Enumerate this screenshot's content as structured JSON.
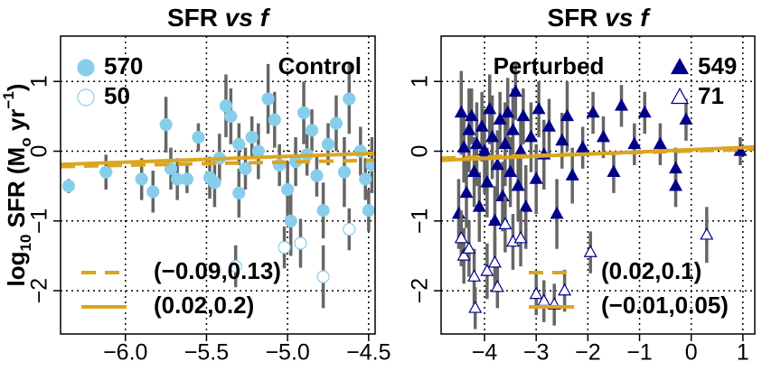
{
  "chart_data": [
    {
      "type": "scatter",
      "title_parts": [
        "SFR",
        "vs f"
      ],
      "ylabel_parts": [
        "log",
        "10",
        " SFR (M",
        "o",
        " yr",
        "−1",
        ")"
      ],
      "annotation": "Control",
      "xlim": [
        -6.4,
        -4.46
      ],
      "ylim": [
        -2.62,
        1.65
      ],
      "grid": true,
      "xticks": [
        {
          "value": -6.0,
          "label": "−6.0"
        },
        {
          "value": -5.5,
          "label": "−5.5"
        },
        {
          "value": -5.0,
          "label": "−5.0"
        },
        {
          "value": -4.5,
          "label": "−4.5"
        }
      ],
      "yticks": [
        1,
        0,
        {
          "value": -1,
          "label": "−1"
        },
        {
          "value": -2,
          "label": "−2"
        }
      ],
      "series": [
        {
          "name": "570",
          "marker": "circle",
          "filled": true,
          "color": "#87ceeb",
          "x": [
            -6.35,
            -6.12,
            -5.9,
            -5.83,
            -5.75,
            -5.72,
            -5.68,
            -5.62,
            -5.55,
            -5.48,
            -5.45,
            -5.42,
            -5.38,
            -5.35,
            -5.3,
            -5.3,
            -5.26,
            -5.22,
            -5.18,
            -5.12,
            -5.08,
            -5.05,
            -5.0,
            -4.98,
            -4.95,
            -4.9,
            -4.88,
            -4.85,
            -4.82,
            -4.78,
            -4.75,
            -4.7,
            -4.65,
            -4.62,
            -4.55,
            -4.52,
            -4.5,
            -4.48
          ],
          "y": [
            -0.5,
            -0.3,
            -0.4,
            -0.58,
            0.38,
            -0.25,
            -0.4,
            -0.4,
            0.2,
            -0.38,
            -0.45,
            -0.1,
            0.65,
            0.5,
            -0.6,
            0.1,
            -0.25,
            0.2,
            0.0,
            0.75,
            0.45,
            -0.2,
            -0.55,
            -1.0,
            -0.15,
            0.55,
            -0.05,
            0.3,
            -0.35,
            -0.85,
            0.1,
            0.4,
            -0.3,
            0.75,
            0.0,
            -0.4,
            -0.85,
            -0.2
          ],
          "err": [
            0.1,
            0.25,
            0.3,
            0.3,
            0.4,
            0.3,
            0.3,
            0.2,
            0.2,
            0.3,
            0.35,
            0.35,
            0.45,
            0.4,
            0.35,
            0.3,
            0.3,
            0.3,
            0.4,
            0.5,
            0.4,
            0.3,
            0.4,
            0.5,
            0.35,
            0.45,
            0.3,
            0.3,
            0.3,
            0.4,
            0.3,
            0.4,
            0.5,
            0.5,
            0.35,
            0.3,
            0.3,
            0.4
          ]
        },
        {
          "name": "50",
          "marker": "circle",
          "filled": false,
          "color": "#87ceeb",
          "x": [
            -5.32,
            -5.02,
            -4.92,
            -4.78,
            -4.62
          ],
          "y": [
            -1.65,
            -1.38,
            -1.32,
            -1.8,
            -1.12
          ],
          "err": [
            0.3,
            0.3,
            0.35,
            0.45,
            0.3
          ]
        },
        {
          "name": "(−0.09,0.13)",
          "line": "dashed",
          "color": "#daa520",
          "x": [
            -6.4,
            -4.46
          ],
          "y": [
            -0.22,
            -0.13
          ]
        },
        {
          "name": "(0.02,0.2)",
          "line": "solid",
          "color": "#daa520",
          "x": [
            -6.4,
            -4.46
          ],
          "y": [
            -0.19,
            -0.03
          ]
        }
      ]
    },
    {
      "type": "scatter",
      "title_parts": [
        "SFR",
        "vs f"
      ],
      "annotation": "Perturbed",
      "xlim": [
        -4.84,
        1.23
      ],
      "ylim": [
        -2.62,
        1.65
      ],
      "grid": true,
      "xticks": [
        {
          "value": -4,
          "label": "−4"
        },
        {
          "value": -3,
          "label": "−3"
        },
        {
          "value": -2,
          "label": "−2"
        },
        {
          "value": -1,
          "label": "−1"
        },
        0,
        1
      ],
      "yticks": [
        1,
        0,
        {
          "value": -1,
          "label": "−1"
        },
        {
          "value": -2,
          "label": "−2"
        }
      ],
      "series": [
        {
          "name": "549",
          "marker": "triangle",
          "filled": true,
          "color": "#00008b",
          "x": [
            -4.5,
            -4.45,
            -4.4,
            -4.35,
            -4.3,
            -4.25,
            -4.2,
            -4.15,
            -4.1,
            -4.05,
            -4.0,
            -3.95,
            -3.9,
            -3.85,
            -3.8,
            -3.75,
            -3.7,
            -3.65,
            -3.6,
            -3.55,
            -3.5,
            -3.45,
            -3.4,
            -3.35,
            -3.3,
            -3.25,
            -3.2,
            -3.1,
            -3.0,
            -2.95,
            -2.85,
            -2.75,
            -2.6,
            -2.5,
            -2.4,
            -2.3,
            -2.1,
            -1.9,
            -1.7,
            -1.5,
            -1.35,
            -1.1,
            -0.9,
            -0.6,
            -0.3,
            -0.3,
            -0.1,
            0.95
          ],
          "y": [
            -0.9,
            0.55,
            0.05,
            -0.6,
            0.3,
            0.5,
            -0.3,
            0.1,
            -0.8,
            0.35,
            0.0,
            -0.45,
            0.6,
            0.2,
            -1.0,
            -0.2,
            0.45,
            -0.65,
            0.1,
            0.55,
            -0.3,
            0.3,
            0.85,
            -0.5,
            0.0,
            0.5,
            -0.8,
            0.2,
            -0.4,
            0.6,
            -0.05,
            0.35,
            -0.9,
            0.15,
            0.5,
            -0.35,
            0.05,
            0.55,
            0.2,
            -0.3,
            0.65,
            0.1,
            0.55,
            0.1,
            -0.25,
            -0.5,
            0.45,
            0.0
          ],
          "err": [
            0.5,
            0.6,
            0.5,
            0.5,
            0.6,
            0.4,
            0.5,
            0.6,
            0.5,
            0.5,
            0.6,
            0.5,
            0.5,
            0.6,
            0.5,
            0.5,
            0.4,
            0.5,
            0.6,
            0.5,
            0.5,
            0.6,
            0.4,
            0.5,
            0.5,
            0.4,
            0.6,
            0.5,
            0.5,
            0.4,
            0.5,
            0.4,
            0.5,
            0.4,
            0.5,
            0.4,
            0.3,
            0.3,
            0.3,
            0.3,
            0.3,
            0.3,
            0.3,
            0.3,
            0.3,
            0.3,
            0.3,
            0.2
          ]
        },
        {
          "name": "71",
          "marker": "triangle",
          "filled": false,
          "color": "#00008b",
          "x": [
            -4.45,
            -4.4,
            -4.3,
            -4.2,
            -4.18,
            -3.95,
            -3.8,
            -3.75,
            -3.6,
            -3.45,
            -3.3,
            -3.0,
            -2.85,
            -2.65,
            -2.45,
            -1.95,
            0.3
          ],
          "y": [
            -1.25,
            -1.5,
            -1.4,
            -1.8,
            -2.25,
            -1.72,
            -1.6,
            -1.95,
            -1.05,
            -1.3,
            -1.25,
            -2.05,
            -2.15,
            -2.2,
            -2.0,
            -1.45,
            -1.2
          ],
          "err": [
            0.4,
            0.4,
            0.4,
            0.4,
            0.3,
            0.4,
            0.4,
            0.3,
            0.4,
            0.4,
            0.4,
            0.3,
            0.3,
            0.3,
            0.3,
            0.3,
            0.4
          ]
        },
        {
          "name": "(0.02,0.1)",
          "line": "dashed",
          "color": "#daa520",
          "x": [
            -4.84,
            1.23
          ],
          "y": [
            -0.1,
            0.03
          ]
        },
        {
          "name": "(−0.01,0.05)",
          "line": "solid",
          "color": "#daa520",
          "x": [
            -4.84,
            1.23
          ],
          "y": [
            -0.13,
            0.06
          ]
        }
      ]
    }
  ]
}
